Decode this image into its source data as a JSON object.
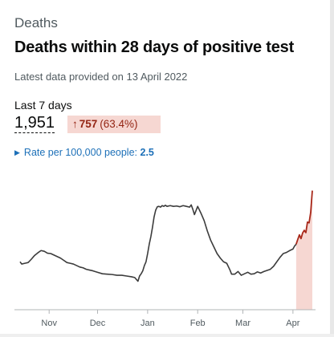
{
  "section": "Deaths",
  "title": "Deaths within 28 days of positive test",
  "updated": "Latest data provided on 13 April 2022",
  "headline": {
    "label": "Last 7 days",
    "value": "1,951",
    "change_arrow": "↑",
    "change_value": "757",
    "change_percent": "(63.4%)"
  },
  "rate": {
    "label": "Rate per 100,000 people:",
    "value": "2.5"
  },
  "colors": {
    "line": "#3c3c3c",
    "highlight_line": "#a8281a",
    "highlight_fill": "#f6d7d2",
    "axis": "#b1b4b6"
  },
  "chart_data": {
    "type": "line",
    "x_ticks": [
      "Nov",
      "Dec",
      "Jan",
      "Feb",
      "Mar",
      "Apr"
    ],
    "xlim": [
      "2021-10-14",
      "2022-04-13"
    ],
    "highlight_start": "2022-04-03",
    "ylim": [
      0,
      360
    ],
    "series": [
      {
        "x": [
          "2021-10-14",
          "2021-10-15",
          "2021-10-17",
          "2021-10-19",
          "2021-10-21",
          "2021-10-23",
          "2021-10-25",
          "2021-10-27",
          "2021-10-29",
          "2021-10-31",
          "2021-11-02",
          "2021-11-04",
          "2021-11-06",
          "2021-11-08",
          "2021-11-10",
          "2021-11-12",
          "2021-11-14",
          "2021-11-16",
          "2021-11-18",
          "2021-11-20",
          "2021-11-22",
          "2021-11-24",
          "2021-11-26",
          "2021-11-28",
          "2021-12-01",
          "2021-12-04",
          "2021-12-07",
          "2021-12-10",
          "2021-12-13",
          "2021-12-16",
          "2021-12-19",
          "2021-12-22",
          "2021-12-24",
          "2021-12-26",
          "2021-12-27",
          "2021-12-28",
          "2021-12-29",
          "2021-12-30",
          "2021-12-31",
          "2022-01-01",
          "2022-01-02",
          "2022-01-03",
          "2022-01-04",
          "2022-01-05",
          "2022-01-06",
          "2022-01-07",
          "2022-01-08",
          "2022-01-09",
          "2022-01-10",
          "2022-01-11",
          "2022-01-12",
          "2022-01-13",
          "2022-01-15",
          "2022-01-17",
          "2022-01-19",
          "2022-01-21",
          "2022-01-23",
          "2022-01-25",
          "2022-01-27",
          "2022-01-28",
          "2022-01-29",
          "2022-01-30",
          "2022-01-31",
          "2022-02-01",
          "2022-02-03",
          "2022-02-05",
          "2022-02-07",
          "2022-02-09",
          "2022-02-11",
          "2022-02-13",
          "2022-02-15",
          "2022-02-17",
          "2022-02-19",
          "2022-02-20",
          "2022-02-21",
          "2022-02-22",
          "2022-02-24",
          "2022-02-26",
          "2022-02-28",
          "2022-03-02",
          "2022-03-04",
          "2022-03-06",
          "2022-03-08",
          "2022-03-10",
          "2022-03-12",
          "2022-03-14",
          "2022-03-16",
          "2022-03-18",
          "2022-03-20",
          "2022-03-22",
          "2022-03-24",
          "2022-03-26",
          "2022-03-28",
          "2022-03-30",
          "2022-04-01",
          "2022-04-02",
          "2022-04-03",
          "2022-04-04",
          "2022-04-05",
          "2022-04-06",
          "2022-04-07",
          "2022-04-08",
          "2022-04-09",
          "2022-04-10",
          "2022-04-11",
          "2022-04-12",
          "2022-04-13"
        ],
        "y": [
          128,
          122,
          124,
          126,
          135,
          145,
          152,
          158,
          156,
          151,
          150,
          146,
          142,
          138,
          132,
          126,
          124,
          122,
          118,
          114,
          112,
          108,
          106,
          104,
          100,
          96,
          95,
          94,
          92,
          92,
          90,
          88,
          86,
          76,
          90,
          96,
          104,
          118,
          128,
          150,
          175,
          195,
          220,
          248,
          266,
          275,
          276,
          274,
          278,
          276,
          279,
          276,
          278,
          276,
          277,
          275,
          278,
          276,
          274,
          280,
          268,
          254,
          265,
          276,
          258,
          238,
          210,
          186,
          168,
          150,
          138,
          128,
          124,
          115,
          106,
          95,
          95,
          102,
          92,
          96,
          100,
          95,
          96,
          101,
          98,
          102,
          105,
          108,
          116,
          128,
          140,
          150,
          153,
          158,
          162,
          170,
          175,
          188,
          200,
          190,
          205,
          212,
          206,
          234,
          232,
          260,
          318
        ]
      }
    ]
  }
}
